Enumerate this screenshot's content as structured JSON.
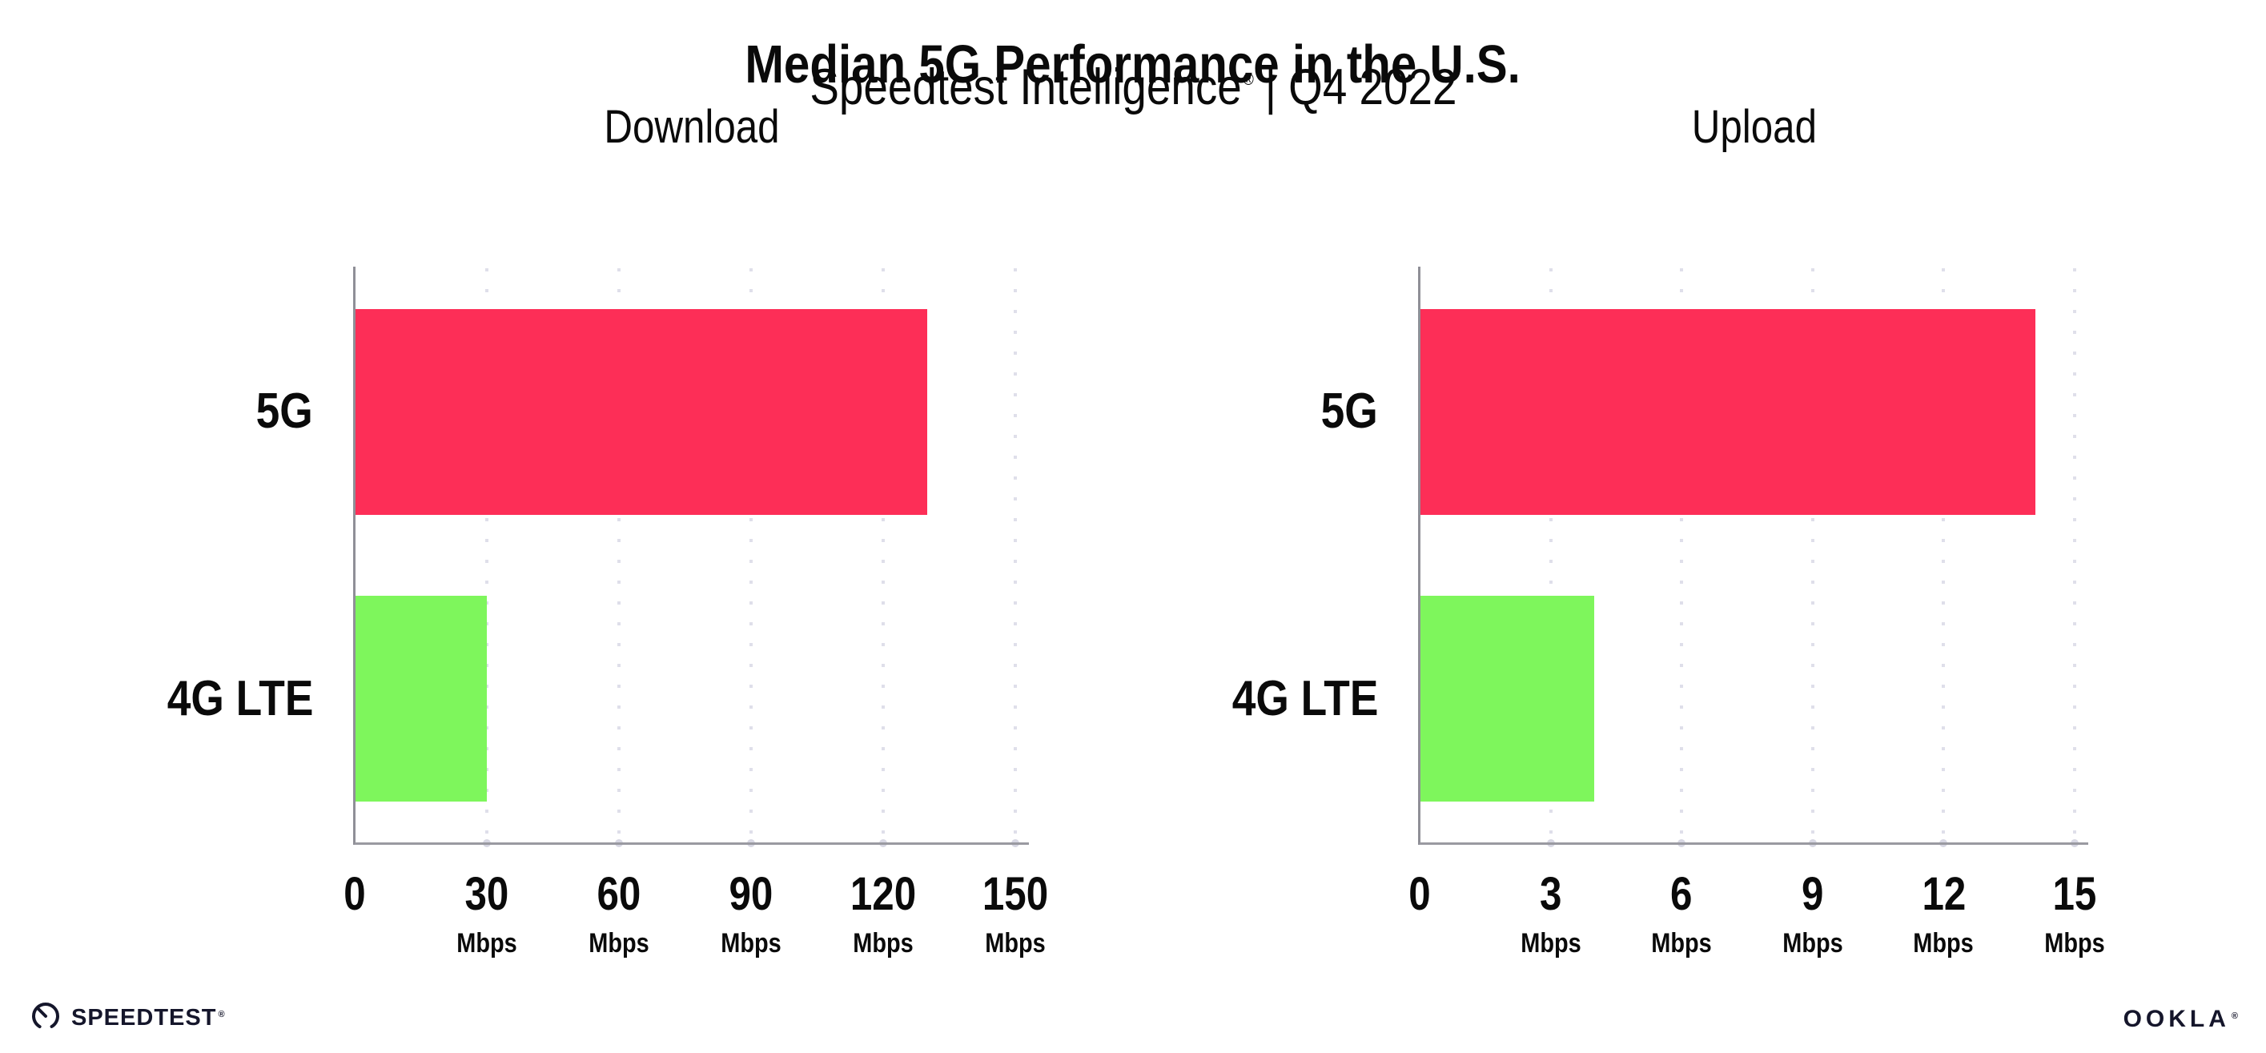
{
  "header": {
    "title": "Median 5G Performance in the U.S.",
    "subtitle_brand": "Speedtest Intelligence",
    "subtitle_reg": "®",
    "subtitle_rest": "| Q4 2022"
  },
  "chart_data": [
    {
      "type": "bar",
      "orientation": "horizontal",
      "title": "Download",
      "categories": [
        "5G",
        "4G LTE"
      ],
      "values": [
        130,
        30
      ],
      "unit": "Mbps",
      "xlim": [
        0,
        150
      ],
      "xticks": [
        {
          "value": 0,
          "label": "0",
          "unit": ""
        },
        {
          "value": 30,
          "label": "30",
          "unit": "Mbps"
        },
        {
          "value": 60,
          "label": "60",
          "unit": "Mbps"
        },
        {
          "value": 90,
          "label": "90",
          "unit": "Mbps"
        },
        {
          "value": 120,
          "label": "120",
          "unit": "Mbps"
        },
        {
          "value": 150,
          "label": "150",
          "unit": "Mbps"
        }
      ],
      "bar_colors": [
        "#fd2e57",
        "#7ef65c"
      ],
      "grid": "dotted-vertical-gridlines",
      "legend": "none"
    },
    {
      "type": "bar",
      "orientation": "horizontal",
      "title": "Upload",
      "categories": [
        "5G",
        "4G LTE"
      ],
      "values": [
        14.1,
        4
      ],
      "unit": "Mbps",
      "xlim": [
        0,
        15
      ],
      "xticks": [
        {
          "value": 0,
          "label": "0",
          "unit": ""
        },
        {
          "value": 3,
          "label": "3",
          "unit": "Mbps"
        },
        {
          "value": 6,
          "label": "6",
          "unit": "Mbps"
        },
        {
          "value": 9,
          "label": "9",
          "unit": "Mbps"
        },
        {
          "value": 12,
          "label": "12",
          "unit": "Mbps"
        },
        {
          "value": 15,
          "label": "15",
          "unit": "Mbps"
        }
      ],
      "bar_colors": [
        "#fd2e57",
        "#7ef65c"
      ],
      "grid": "dotted-vertical-gridlines",
      "legend": "none"
    }
  ],
  "footer": {
    "speedtest_label": "SPEEDTEST",
    "speedtest_reg": "®",
    "ookla_label": "OOKLA",
    "ookla_reg": "®"
  },
  "colors": {
    "bar_5g": "#fd2e57",
    "bar_4g_lte": "#7ef65c",
    "gridline": "#dfdfea",
    "x_axis": "#9a9aa1",
    "y_axis": "#8f8f97",
    "text": "#0a0a0a",
    "logo": "#15162b"
  }
}
